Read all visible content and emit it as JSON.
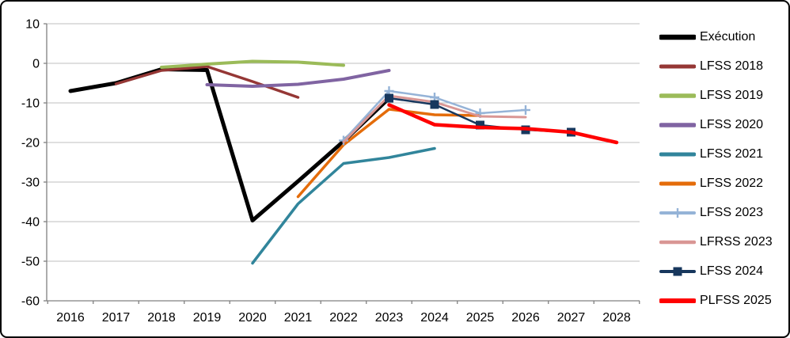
{
  "style": {
    "background": "#ffffff",
    "frame_border_color": "#000000",
    "axis_color": "#808080",
    "grid_color": "#bfbfbf",
    "text_color": "#000000"
  },
  "chart_data": {
    "type": "line",
    "title": "",
    "x": [
      "2016",
      "2017",
      "2018",
      "2019",
      "2020",
      "2021",
      "2022",
      "2023",
      "2024",
      "2025",
      "2026",
      "2027",
      "2028"
    ],
    "ylim": [
      -60,
      10
    ],
    "y_ticks": [
      10,
      0,
      -10,
      -20,
      -30,
      -40,
      -50,
      -60
    ],
    "grid": true,
    "legend_position": "right",
    "series": [
      {
        "name": "Exécution",
        "color": "#000000",
        "width": 5,
        "marker": null,
        "values": [
          -7,
          -5,
          -1.5,
          -1.7,
          -39.7,
          -29.8,
          -19.7,
          -8.8,
          null,
          null,
          null,
          null,
          null
        ]
      },
      {
        "name": "LFSS 2018",
        "color": "#953735",
        "width": 3.5,
        "marker": null,
        "values": [
          null,
          -5.2,
          -1.8,
          -0.8,
          -4.6,
          -8.6,
          null,
          null,
          null,
          null,
          null,
          null,
          null
        ]
      },
      {
        "name": "LFSS 2019",
        "color": "#9bbb59",
        "width": 4,
        "marker": null,
        "values": [
          null,
          null,
          -1.0,
          -0.2,
          0.5,
          0.3,
          -0.5,
          null,
          null,
          null,
          null,
          null,
          null
        ]
      },
      {
        "name": "LFSS 2020",
        "color": "#8064a2",
        "width": 4,
        "marker": null,
        "values": [
          null,
          null,
          null,
          -5.4,
          -5.8,
          -5.3,
          -4.0,
          -1.8,
          null,
          null,
          null,
          null,
          null
        ]
      },
      {
        "name": "LFSS 2021",
        "color": "#31859b",
        "width": 3.5,
        "marker": null,
        "values": [
          null,
          null,
          null,
          null,
          -50.5,
          -35.5,
          -25.3,
          -23.8,
          -21.5,
          null,
          null,
          null,
          null
        ]
      },
      {
        "name": "LFSS 2022",
        "color": "#e46c0a",
        "width": 3.5,
        "marker": null,
        "values": [
          null,
          null,
          null,
          null,
          null,
          -33.7,
          -20.6,
          -11.6,
          -13.0,
          -13.2,
          null,
          null,
          null
        ]
      },
      {
        "name": "LFSS 2023",
        "color": "#95b3d7",
        "width": 2.5,
        "marker": "plus",
        "values": [
          null,
          null,
          null,
          null,
          null,
          null,
          -19.5,
          -7.0,
          -8.6,
          -12.6,
          -11.8,
          null,
          null
        ]
      },
      {
        "name": "LFRSS 2023",
        "color": "#d99694",
        "width": 3,
        "marker": null,
        "values": [
          null,
          null,
          null,
          null,
          null,
          null,
          -19.9,
          -8.2,
          -9.8,
          -13.4,
          -13.6,
          null,
          null
        ]
      },
      {
        "name": "LFSS 2024",
        "color": "#17375d",
        "width": 2.5,
        "marker": "square",
        "values": [
          null,
          null,
          null,
          null,
          null,
          null,
          null,
          -8.8,
          -10.4,
          -15.6,
          -16.8,
          -17.4,
          null
        ]
      },
      {
        "name": "PLFSS 2025",
        "color": "#ff0000",
        "width": 4.5,
        "marker": null,
        "values": [
          null,
          null,
          null,
          null,
          null,
          null,
          null,
          -10.5,
          -15.5,
          -16.2,
          -16.5,
          -17.4,
          -20.0
        ]
      }
    ]
  }
}
